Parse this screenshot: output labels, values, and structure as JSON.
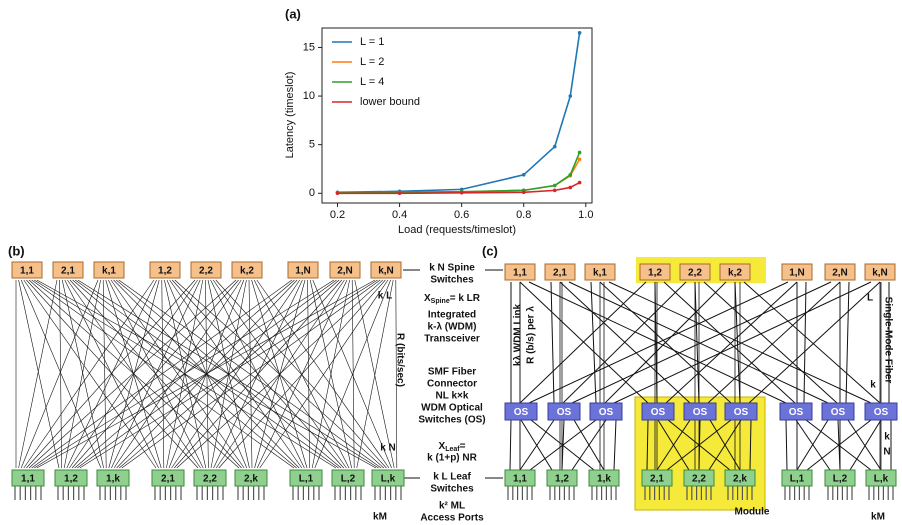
{
  "chart_data": {
    "type": "line",
    "title": "(a)",
    "x_label": "Load (requests/timeslot)",
    "y_label": "Latency (timeslot)",
    "x": [
      0.2,
      0.4,
      0.6,
      0.8,
      0.9,
      0.95,
      0.98
    ],
    "series": [
      {
        "name": "L = 1",
        "color": "#1f77b4",
        "values": [
          0.1,
          0.2,
          0.4,
          1.9,
          4.8,
          10,
          16.5
        ]
      },
      {
        "name": "L = 2",
        "color": "#ff7f0e",
        "values": [
          0.05,
          0.1,
          0.15,
          0.3,
          0.8,
          1.8,
          3.5
        ]
      },
      {
        "name": "L = 4",
        "color": "#2ca02c",
        "values": [
          0.05,
          0.1,
          0.15,
          0.3,
          0.8,
          1.9,
          4.2
        ]
      },
      {
        "name": "lower bound",
        "color": "#d62728",
        "values": [
          0,
          0,
          0.05,
          0.1,
          0.3,
          0.6,
          1.1
        ]
      }
    ],
    "xlim": [
      0.15,
      1.02
    ],
    "ylim": [
      -1,
      17
    ],
    "xticks": [
      0.2,
      0.4,
      0.6,
      0.8,
      {
        "value": 1,
        "label": "1.0"
      }
    ],
    "yticks": [
      0,
      5,
      10,
      15
    ],
    "legend": "upper left"
  },
  "panel_b": {
    "label": "(b)",
    "spines": [
      "1,1",
      "2,1",
      "k,1",
      "1,2",
      "2,2",
      "k,2",
      "1,N",
      "2,N",
      "k,N"
    ],
    "leaves": [
      "1,1",
      "1,2",
      "1,k",
      "2,1",
      "2,2",
      "2,k",
      "L,1",
      "L,2",
      "L,k"
    ]
  },
  "panel_c": {
    "label": "(c)",
    "spines": [
      "1,1",
      "2,1",
      "k,1",
      "1,2",
      "2,2",
      "k,2",
      "1,N",
      "2,N",
      "k,N"
    ],
    "switches": [
      "OS",
      "OS",
      "OS",
      "OS",
      "OS",
      "OS",
      "OS",
      "OS",
      "OS"
    ],
    "leaves": [
      "1,1",
      "1,2",
      "1,k",
      "2,1",
      "2,2",
      "2,k",
      "L,1",
      "L,2",
      "L,k"
    ],
    "module": "Module"
  },
  "annotations": {
    "spine_switches": [
      "k N Spine",
      "Switches"
    ],
    "x_spine": {
      "main": "X",
      "sub": "Spine",
      "rest": "= k LR"
    },
    "transceiver": [
      "Integrated",
      "k-λ (WDM)",
      "Transceiver"
    ],
    "connector": [
      "SMF Fiber",
      "Connector"
    ],
    "optical_switches": [
      "NL k×k",
      "WDM Optical",
      "Switches (OS)"
    ],
    "x_leaf": {
      "main": "X",
      "sub": "Leaf",
      "rest": "="
    },
    "x_leaf_value": "k (1+p) NR",
    "leaf_switches": [
      "k L Leaf",
      "Switches"
    ],
    "access_ports": [
      "k² ML",
      "Access Ports"
    ],
    "rate": "R (bits/sec)",
    "b_kl": "k L",
    "b_kn": "k N",
    "b_km": "kM",
    "c_km": "kM",
    "wdm_link": "kλ WDM Link",
    "rate_per_lambda": "R (b/s) per λ",
    "fiber": "Single-Mode Fiber",
    "c_L": "L",
    "c_k1": "k",
    "c_k2": "k",
    "c_N": "N"
  }
}
